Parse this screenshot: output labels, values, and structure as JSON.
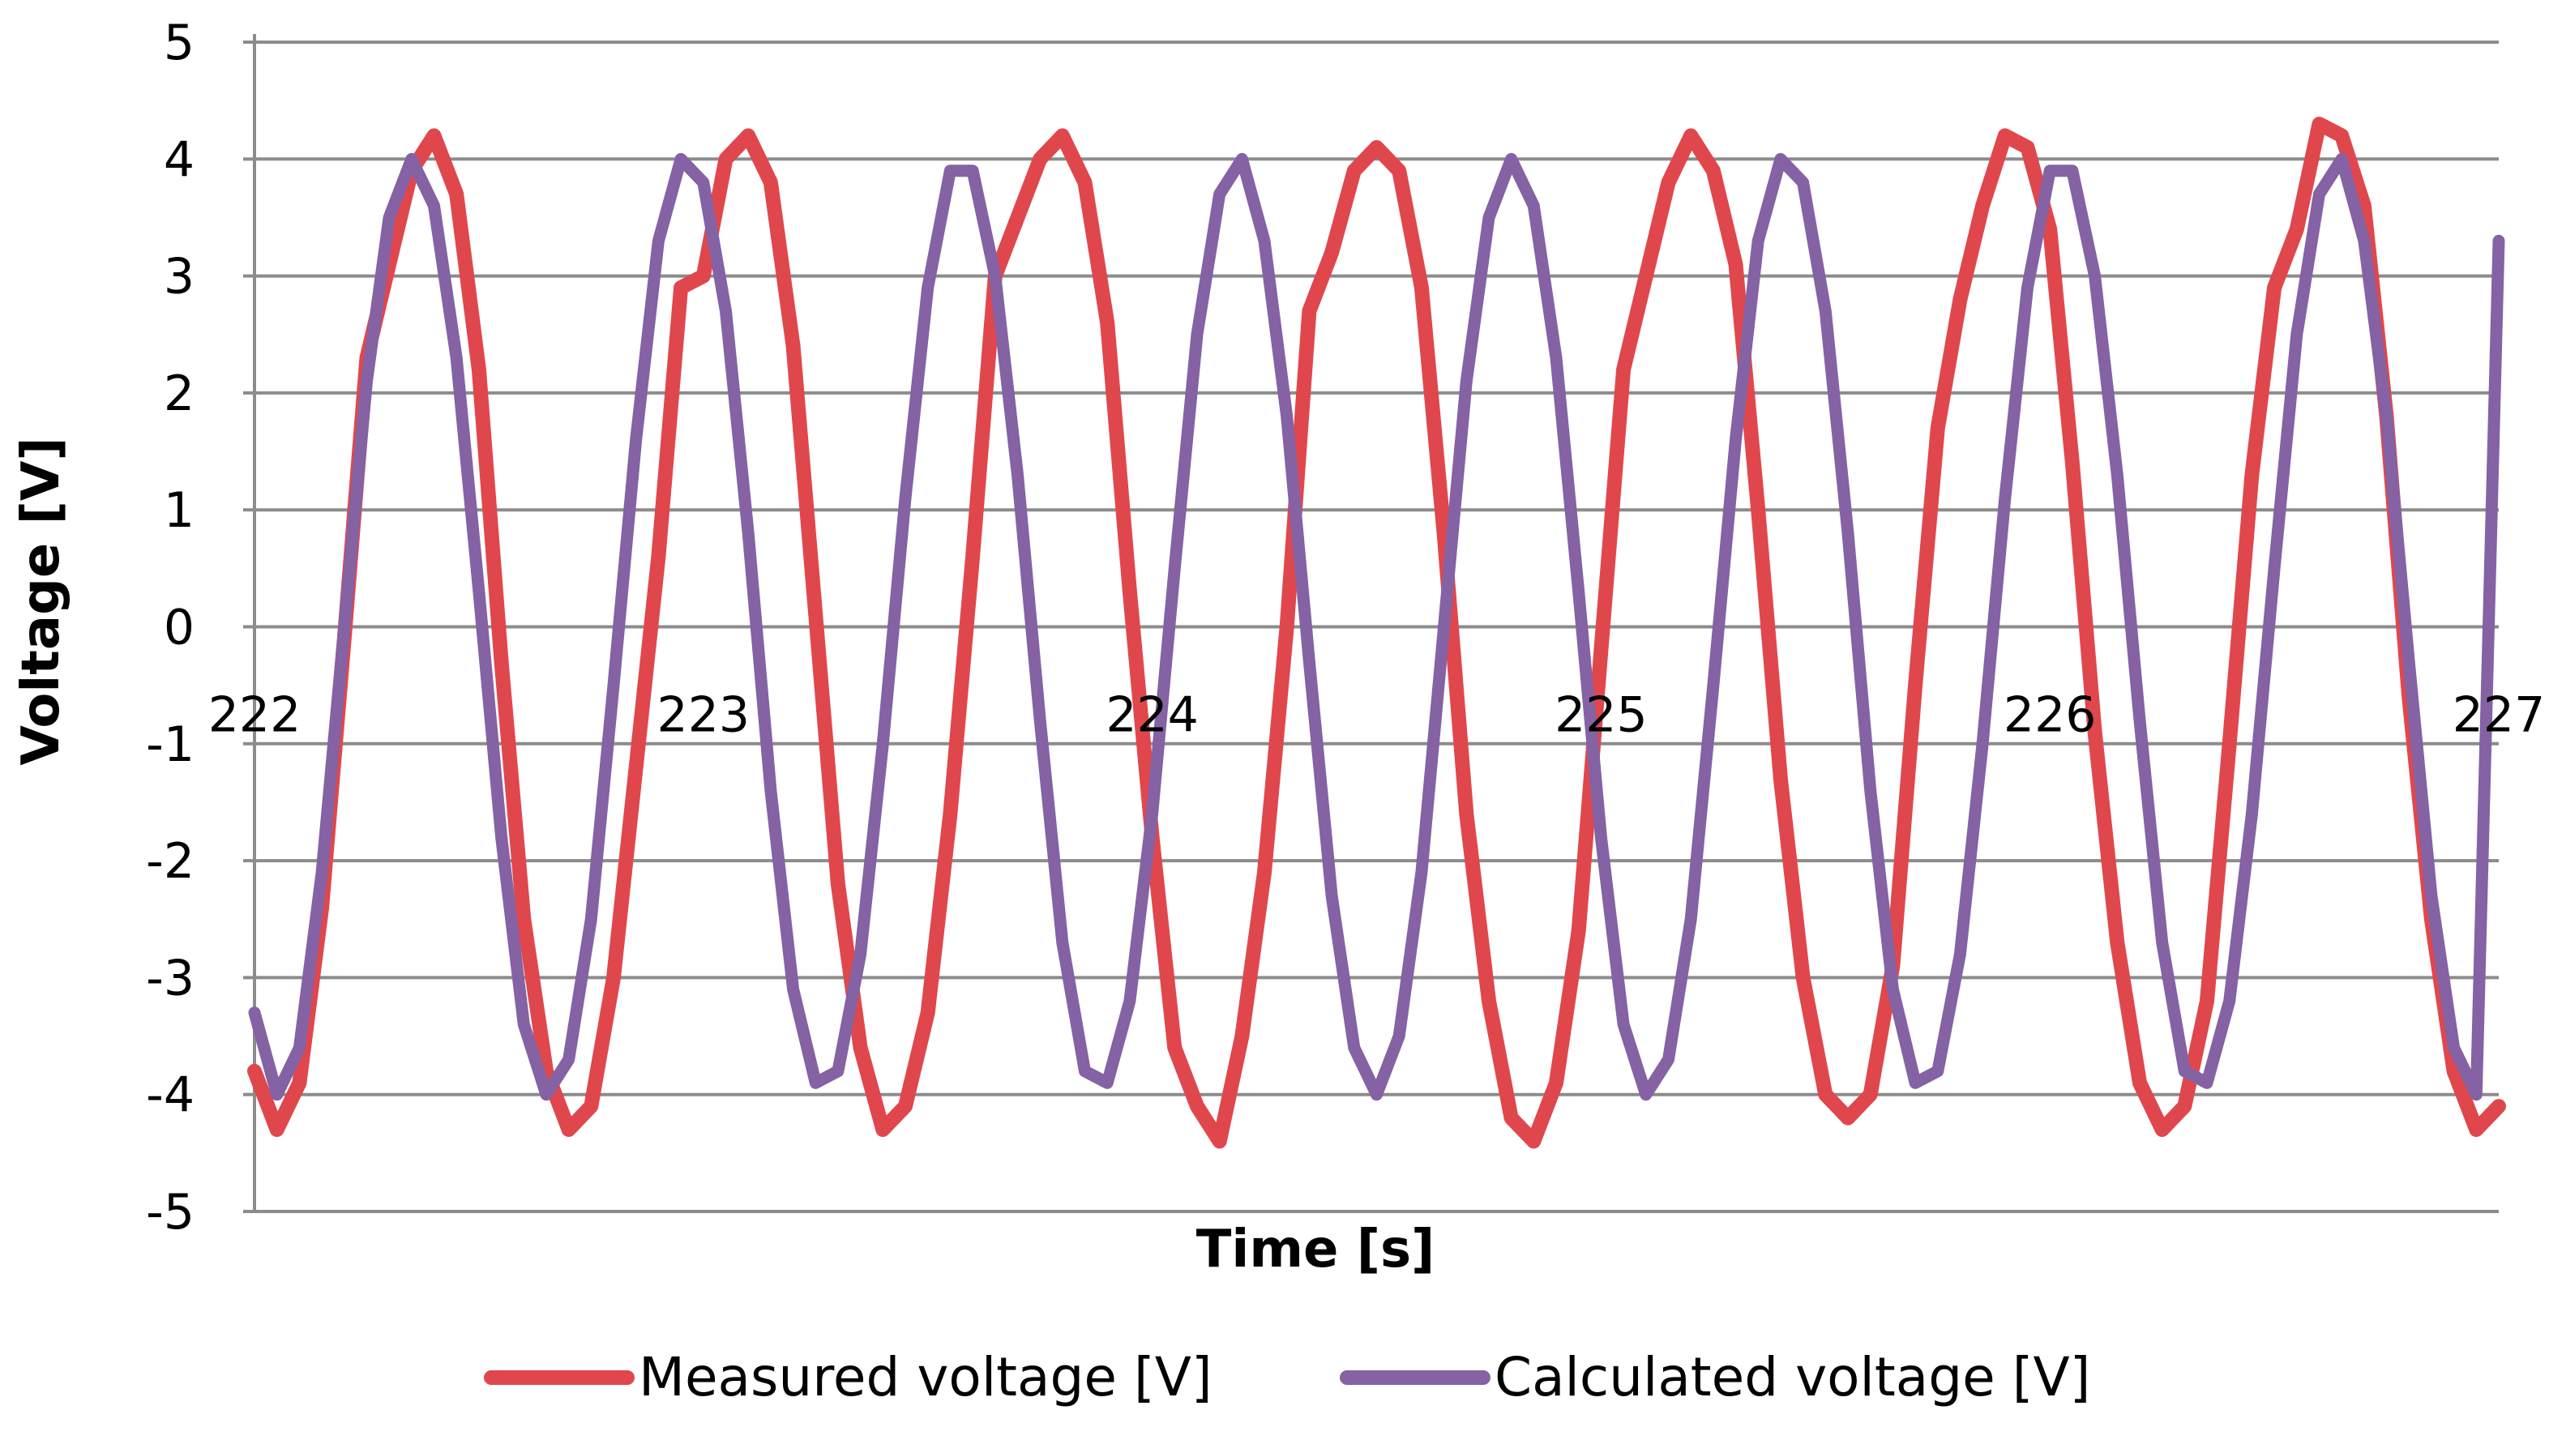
{
  "chart_data": {
    "type": "line",
    "title": "",
    "xlabel": "Time [s]",
    "ylabel": "Voltage [V]",
    "xlim": [
      222,
      227
    ],
    "ylim": [
      -5,
      5
    ],
    "x_ticks": [
      222,
      223,
      224,
      225,
      226,
      227
    ],
    "y_ticks": [
      5,
      4,
      3,
      2,
      1,
      0,
      -1,
      -2,
      -3,
      -4,
      -5
    ],
    "x_tick_labels": [
      "222",
      "223",
      "224",
      "225",
      "226",
      "227"
    ],
    "y_tick_labels": [
      "5",
      "4",
      "3",
      "2",
      "1",
      "0",
      "-1",
      "-2",
      "-3",
      "-4",
      "-5"
    ],
    "grid": true,
    "legend_position": "bottom",
    "series": [
      {
        "name": "Measured voltage [V]",
        "color": "#e0474c",
        "x": [
          222.0,
          222.05,
          222.1,
          222.15,
          222.2,
          222.25,
          222.3,
          222.35,
          222.4,
          222.45,
          222.5,
          222.55,
          222.6,
          222.65,
          222.7,
          222.75,
          222.8,
          222.85,
          222.9,
          222.95,
          223.0,
          223.05,
          223.1,
          223.15,
          223.2,
          223.25,
          223.3,
          223.35,
          223.4,
          223.45,
          223.5,
          223.55,
          223.6,
          223.65,
          223.7,
          223.75,
          223.8,
          223.85,
          223.9,
          223.95,
          224.0,
          224.05,
          224.1,
          224.15,
          224.2,
          224.25,
          224.3,
          224.35,
          224.4,
          224.45,
          224.5,
          224.55,
          224.6,
          224.65,
          224.7,
          224.75,
          224.8,
          224.85,
          224.9,
          224.95,
          225.0,
          225.05,
          225.1,
          225.15,
          225.2,
          225.25,
          225.3,
          225.35,
          225.4,
          225.45,
          225.5,
          225.55,
          225.6,
          225.65,
          225.7,
          225.75,
          225.8,
          225.85,
          225.9,
          225.95,
          226.0,
          226.05,
          226.1,
          226.15,
          226.2,
          226.25,
          226.3,
          226.35,
          226.4,
          226.45,
          226.5,
          226.55,
          226.6,
          226.65,
          226.7,
          226.75,
          226.8,
          226.85,
          226.9,
          226.95,
          227.0
        ],
        "values": [
          -3.8,
          -4.3,
          -3.9,
          -2.4,
          -0.1,
          2.3,
          3.1,
          3.9,
          4.2,
          3.7,
          2.2,
          -0.3,
          -2.5,
          -3.8,
          -4.3,
          -4.1,
          -3.0,
          -1.2,
          0.6,
          2.9,
          3.0,
          4.0,
          4.2,
          3.8,
          2.4,
          0.1,
          -2.2,
          -3.6,
          -4.3,
          -4.1,
          -3.3,
          -1.6,
          0.6,
          3.0,
          3.5,
          4.0,
          4.2,
          3.8,
          2.6,
          0.3,
          -1.8,
          -3.6,
          -4.1,
          -4.4,
          -3.5,
          -2.1,
          0.0,
          2.7,
          3.2,
          3.9,
          4.1,
          3.9,
          2.9,
          0.8,
          -1.6,
          -3.2,
          -4.2,
          -4.4,
          -3.9,
          -2.6,
          -0.2,
          2.2,
          3.0,
          3.8,
          4.2,
          3.9,
          3.1,
          1.0,
          -1.3,
          -3.0,
          -4.0,
          -4.2,
          -4.0,
          -2.9,
          -0.5,
          1.7,
          2.8,
          3.6,
          4.2,
          4.1,
          3.4,
          1.4,
          -0.9,
          -2.7,
          -3.9,
          -4.3,
          -4.1,
          -3.2,
          -1.0,
          1.3,
          2.9,
          3.4,
          4.3,
          4.2,
          3.6,
          1.8,
          -0.6,
          -2.5,
          -3.8,
          -4.3,
          -4.1
        ]
      },
      {
        "name": "Calculated voltage [V]",
        "color": "#8462a4",
        "x": [
          222.0,
          222.05,
          222.1,
          222.15,
          222.2,
          222.25,
          222.3,
          222.35,
          222.4,
          222.45,
          222.5,
          222.55,
          222.6,
          222.65,
          222.7,
          222.75,
          222.8,
          222.85,
          222.9,
          222.95,
          223.0,
          223.05,
          223.1,
          223.15,
          223.2,
          223.25,
          223.3,
          223.35,
          223.4,
          223.45,
          223.5,
          223.55,
          223.6,
          223.65,
          223.7,
          223.75,
          223.8,
          223.85,
          223.9,
          223.95,
          224.0,
          224.05,
          224.1,
          224.15,
          224.2,
          224.25,
          224.3,
          224.35,
          224.4,
          224.45,
          224.5,
          224.55,
          224.6,
          224.65,
          224.7,
          224.75,
          224.8,
          224.85,
          224.9,
          224.95,
          225.0,
          225.05,
          225.1,
          225.15,
          225.2,
          225.25,
          225.3,
          225.35,
          225.4,
          225.45,
          225.5,
          225.55,
          225.6,
          225.65,
          225.7,
          225.75,
          225.8,
          225.85,
          225.9,
          225.95,
          226.0,
          226.05,
          226.1,
          226.15,
          226.2,
          226.25,
          226.3,
          226.35,
          226.4,
          226.45,
          226.5,
          226.55,
          226.6,
          226.65,
          226.7,
          226.75,
          226.8,
          226.85,
          226.9,
          226.95,
          227.0
        ],
        "values": [
          -3.3,
          -4.0,
          -3.6,
          -2.1,
          0.0,
          2.1,
          3.5,
          4.0,
          3.6,
          2.3,
          0.3,
          -1.8,
          -3.4,
          -4.0,
          -3.7,
          -2.5,
          -0.5,
          1.6,
          3.3,
          4.0,
          3.8,
          2.7,
          0.8,
          -1.4,
          -3.1,
          -3.9,
          -3.8,
          -2.8,
          -1.0,
          1.1,
          2.9,
          3.9,
          3.9,
          3.0,
          1.3,
          -0.8,
          -2.7,
          -3.8,
          -3.9,
          -3.2,
          -1.6,
          0.5,
          2.5,
          3.7,
          4.0,
          3.3,
          1.8,
          -0.3,
          -2.3,
          -3.6,
          -4.0,
          -3.5,
          -2.1,
          0.0,
          2.1,
          3.5,
          4.0,
          3.6,
          2.3,
          0.3,
          -1.8,
          -3.4,
          -4.0,
          -3.7,
          -2.5,
          -0.5,
          1.6,
          3.3,
          4.0,
          3.8,
          2.7,
          0.8,
          -1.4,
          -3.1,
          -3.9,
          -3.8,
          -2.8,
          -1.0,
          1.1,
          2.9,
          3.9,
          3.9,
          3.0,
          1.3,
          -0.8,
          -2.7,
          -3.8,
          -3.9,
          -3.2,
          -1.6,
          0.5,
          2.5,
          3.7,
          4.0,
          3.3,
          1.8,
          -0.3,
          -2.3,
          -3.6,
          -4.0,
          3.3
        ]
      }
    ]
  }
}
